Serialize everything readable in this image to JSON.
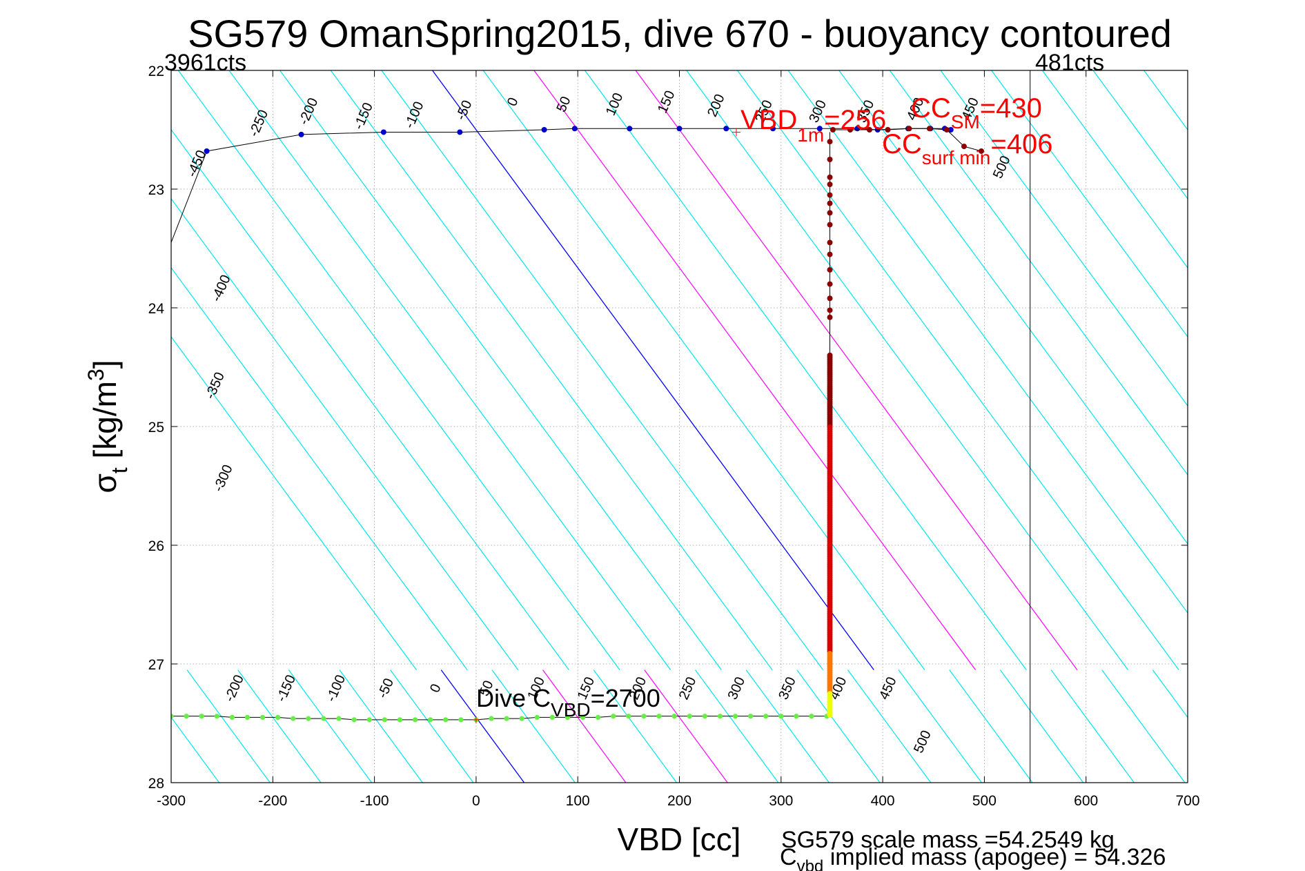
{
  "chart_data": {
    "type": "scatter",
    "title": "SG579 OmanSpring2015, dive 670 - buoyancy contoured",
    "xlabel": "VBD [cc]",
    "ylabel": {
      "main": "σ",
      "sub": "t",
      "unit_pre": " [kg/m",
      "unit_sup": "3",
      "unit_post": "]"
    },
    "xlim": [
      -300,
      700
    ],
    "ylim": [
      22,
      28
    ],
    "y_reversed": true,
    "grid": true,
    "xticks": [
      "-300",
      "-200",
      "-100",
      "0",
      "100",
      "200",
      "300",
      "400",
      "500",
      "600",
      "700"
    ],
    "yticks": [
      "22",
      "23",
      "24",
      "25",
      "26",
      "27",
      "28"
    ],
    "corner_labels": {
      "left": "3961cts",
      "right": "481cts"
    },
    "vertical_line_x": 545,
    "contour_slope_cc_per_sigma": 86,
    "top_contour_anchor_sigma": 22.5,
    "bottom_contour_anchor_sigma": 27.45,
    "contour_values_top": [
      -450,
      -400,
      -350,
      -300,
      -250,
      -200,
      -150,
      -100,
      -50,
      0,
      50,
      100,
      150,
      200,
      250,
      300,
      350,
      400,
      450,
      500,
      550,
      600,
      650,
      700,
      750
    ],
    "contour_values_bottom": [
      -300,
      -250,
      -200,
      -150,
      -100,
      -50,
      0,
      50,
      100,
      150,
      200,
      250,
      300,
      350,
      400,
      450,
      500,
      550,
      600,
      650,
      700,
      750,
      800
    ],
    "top_contour_labels": [
      {
        "text": "-450",
        "x": -271,
        "y": 22.8
      },
      {
        "text": "-400",
        "x": -247,
        "y": 23.85
      },
      {
        "text": "-350",
        "x": -253,
        "y": 24.67
      },
      {
        "text": "-300",
        "x": -245,
        "y": 25.45
      },
      {
        "text": "-250",
        "x": -210,
        "y": 22.46
      },
      {
        "text": "-200",
        "x": -161,
        "y": 22.36
      },
      {
        "text": "-150",
        "x": -107,
        "y": 22.4
      },
      {
        "text": "-100",
        "x": -57,
        "y": 22.39
      },
      {
        "text": "-50",
        "x": -8,
        "y": 22.35
      },
      {
        "text": "0",
        "x": 40,
        "y": 22.28
      },
      {
        "text": "50",
        "x": 90,
        "y": 22.3
      },
      {
        "text": "100",
        "x": 140,
        "y": 22.3
      },
      {
        "text": "150",
        "x": 191,
        "y": 22.28
      },
      {
        "text": "200",
        "x": 240,
        "y": 22.31
      },
      {
        "text": "250",
        "x": 287,
        "y": 22.36
      },
      {
        "text": "300",
        "x": 340,
        "y": 22.36
      },
      {
        "text": "350",
        "x": 387,
        "y": 22.36
      },
      {
        "text": "400",
        "x": 436,
        "y": 22.34
      },
      {
        "text": "450",
        "x": 490,
        "y": 22.34
      },
      {
        "text": "500",
        "x": 521,
        "y": 22.83
      }
    ],
    "bottom_contour_labels": [
      {
        "text": "-200",
        "x": -234,
        "y": 27.22
      },
      {
        "text": "-150",
        "x": -183,
        "y": 27.22
      },
      {
        "text": "-100",
        "x": -134,
        "y": 27.22
      },
      {
        "text": "-50",
        "x": -85,
        "y": 27.22
      },
      {
        "text": "0",
        "x": -36,
        "y": 27.22
      },
      {
        "text": "50",
        "x": 14,
        "y": 27.22
      },
      {
        "text": "100",
        "x": 63,
        "y": 27.22
      },
      {
        "text": "150",
        "x": 112,
        "y": 27.22
      },
      {
        "text": "200",
        "x": 163,
        "y": 27.22
      },
      {
        "text": "250",
        "x": 212,
        "y": 27.22
      },
      {
        "text": "300",
        "x": 260,
        "y": 27.22
      },
      {
        "text": "350",
        "x": 310,
        "y": 27.22
      },
      {
        "text": "400",
        "x": 360,
        "y": 27.22
      },
      {
        "text": "450",
        "x": 409,
        "y": 27.22
      },
      {
        "text": "500",
        "x": 443,
        "y": 27.67
      }
    ],
    "colors": {
      "contour": "#00e5ee",
      "zero_line": "#0000ff",
      "magenta_line": "#ff00ff",
      "climb_points": "#0000cc",
      "bottom_points": "#66ee44",
      "dive_dark": "#8b0000",
      "dive_mid": "#dd0000",
      "dive_orange": "#ff7700",
      "dive_yellow": "#eeff00",
      "annotation": "#ff0000"
    },
    "series": [
      {
        "role": "upper trajectory (blue points)",
        "x": [
          -265,
          -172,
          -91,
          -16,
          67,
          97,
          151,
          200,
          246,
          292,
          338,
          375,
          395,
          425,
          447,
          461,
          467
        ],
        "y": [
          22.68,
          22.54,
          22.52,
          22.52,
          22.5,
          22.49,
          22.49,
          22.49,
          22.49,
          22.49,
          22.49,
          22.49,
          22.5,
          22.49,
          22.49,
          22.49,
          22.5
        ]
      },
      {
        "role": "bottom trajectory (green points)",
        "x": [
          -300,
          -285,
          -270,
          -255,
          -240,
          -225,
          -210,
          -195,
          -180,
          -165,
          -150,
          -135,
          -120,
          -105,
          -90,
          -75,
          -60,
          -45,
          -30,
          -15,
          0,
          15,
          30,
          45,
          60,
          75,
          90,
          105,
          120,
          135,
          150,
          165,
          180,
          195,
          210,
          225,
          240,
          255,
          270,
          285,
          300,
          315,
          330,
          345
        ],
        "y": [
          27.44,
          27.44,
          27.44,
          27.44,
          27.45,
          27.45,
          27.45,
          27.45,
          27.46,
          27.46,
          27.46,
          27.46,
          27.47,
          27.47,
          27.47,
          27.47,
          27.47,
          27.47,
          27.47,
          27.47,
          27.47,
          27.46,
          27.46,
          27.46,
          27.45,
          27.45,
          27.45,
          27.45,
          27.45,
          27.44,
          27.44,
          27.44,
          27.44,
          27.44,
          27.44,
          27.44,
          27.44,
          27.44,
          27.44,
          27.44,
          27.44,
          27.44,
          27.44,
          27.44
        ]
      },
      {
        "role": "vertical profile (colored by depth)",
        "x": 348,
        "y_start": 22.52,
        "y_end": 27.43
      },
      {
        "role": "surface points (dark red)",
        "x": [
          351,
          368,
          387,
          405,
          426,
          446,
          463,
          480,
          497
        ],
        "y": [
          22.5,
          22.5,
          22.5,
          22.5,
          22.49,
          22.49,
          22.5,
          22.64,
          22.68
        ]
      }
    ],
    "annotations": {
      "vbd1m": {
        "main": "VBD",
        "sub": "1m",
        "value": "=256"
      },
      "ccsm": {
        "main": "CC",
        "sub": "SM",
        "value": "=430"
      },
      "ccsurf": {
        "main": "CC",
        "sub": "surf min",
        "value": "=406"
      },
      "divec": {
        "main": "Dive C",
        "sub": "VBD",
        "value": "=2700"
      },
      "scale_mass": "SG579 scale mass =54.2549 kg",
      "implied": {
        "main": "C",
        "sub": "vbd",
        "rest": " implied mass (apogee) = 54.326"
      }
    }
  }
}
